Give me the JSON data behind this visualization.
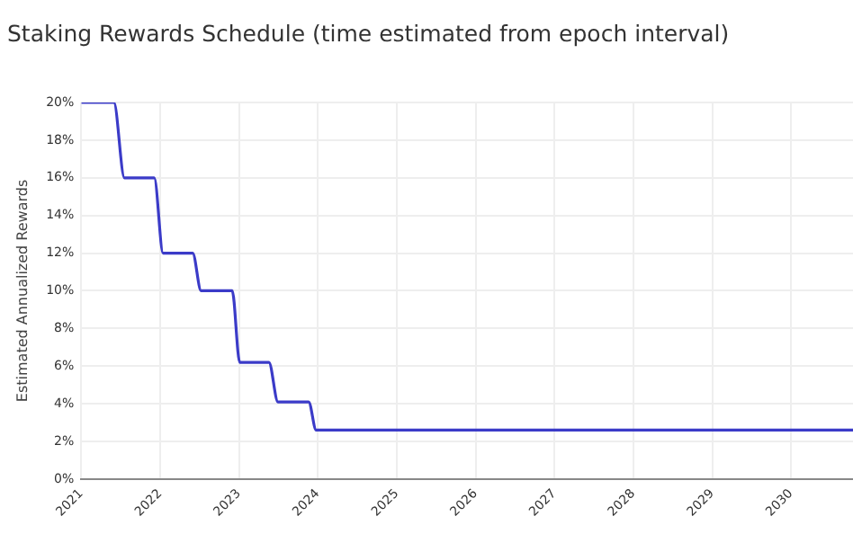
{
  "chart_data": {
    "type": "line",
    "title": "Staking Rewards Schedule (time estimated from epoch interval)",
    "ylabel": "Estimated Annualized Rewards",
    "x": [
      "2021-01-01",
      "2021-06-01",
      "2021-07-20",
      "2021-12-05",
      "2022-01-15",
      "2022-06-01",
      "2022-07-10",
      "2022-12-01",
      "2023-01-05",
      "2023-05-20",
      "2023-07-01",
      "2023-11-20",
      "2023-12-25",
      "2030-10-15"
    ],
    "series": [
      {
        "color": "#3b3bc8",
        "values": [
          20,
          20,
          16,
          16,
          12,
          12,
          10,
          10,
          6.2,
          6.2,
          4.1,
          4.1,
          2.6,
          2.6
        ]
      }
    ],
    "xlim": [
      "2021",
      "2030-10-15"
    ],
    "xticks": [
      "2021",
      "2022",
      "2023",
      "2024",
      "2025",
      "2026",
      "2027",
      "2028",
      "2029",
      "2030"
    ],
    "ylim": [
      0,
      20
    ],
    "yticks": [
      {
        "value": 0,
        "label": "0%"
      },
      {
        "value": 2,
        "label": "2%"
      },
      {
        "value": 4,
        "label": "4%"
      },
      {
        "value": 6,
        "label": "6%"
      },
      {
        "value": 8,
        "label": "8%"
      },
      {
        "value": 10,
        "label": "10%"
      },
      {
        "value": 12,
        "label": "12%"
      },
      {
        "value": 14,
        "label": "14%"
      },
      {
        "value": 16,
        "label": "16%"
      },
      {
        "value": 18,
        "label": "18%"
      },
      {
        "value": 20,
        "label": "20%"
      }
    ],
    "grid": true,
    "legend": false,
    "marker": "none",
    "line_style": "solid"
  }
}
